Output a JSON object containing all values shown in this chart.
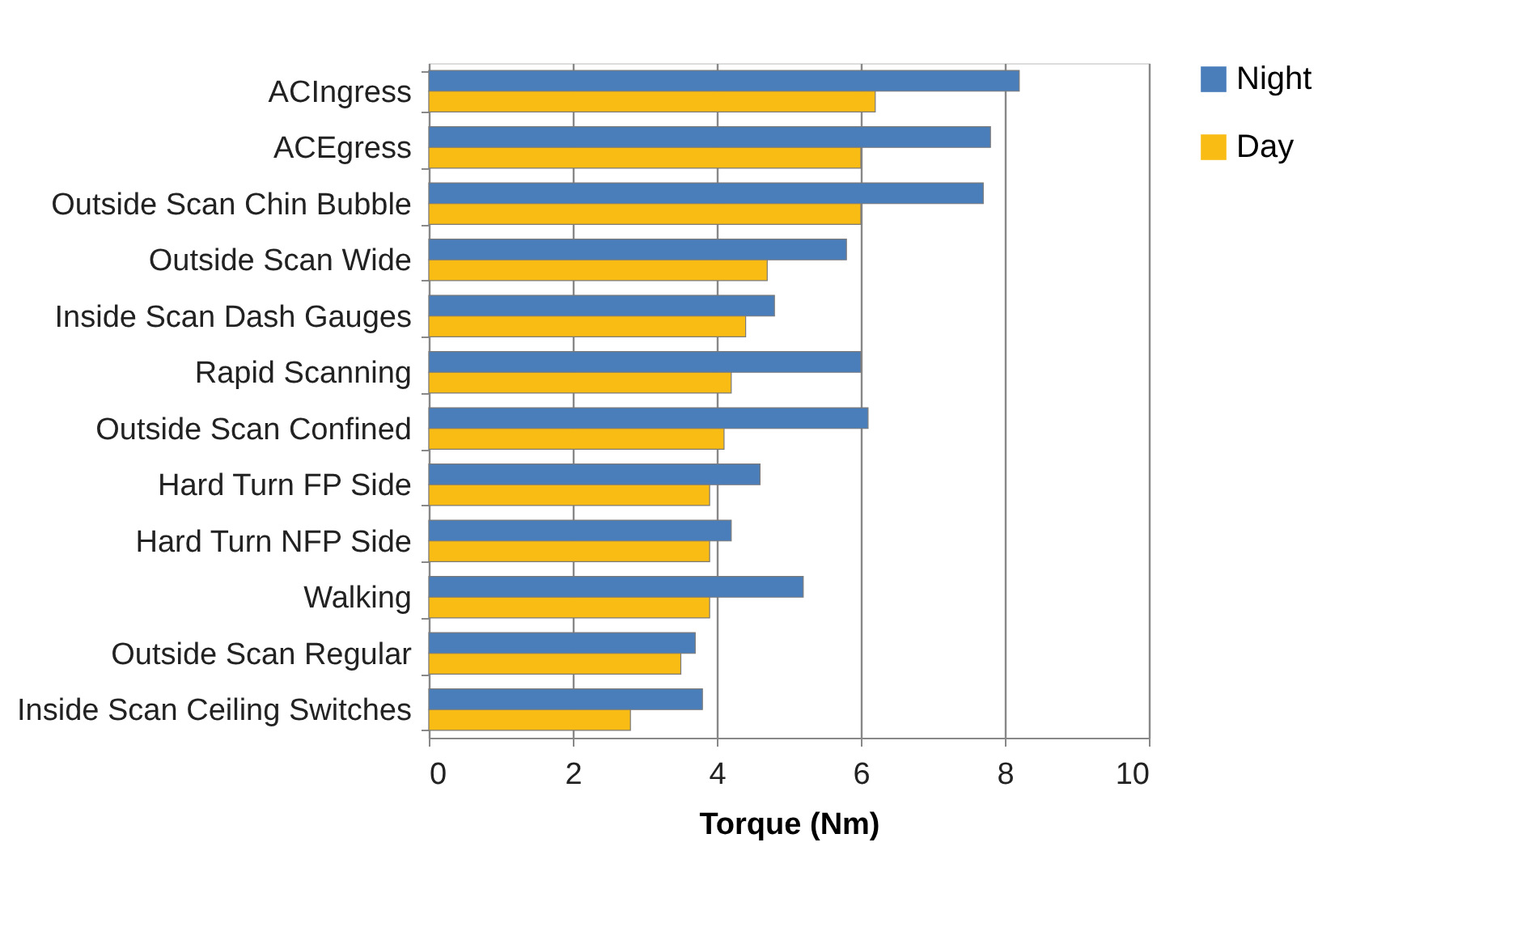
{
  "chart_data": {
    "type": "bar",
    "orientation": "horizontal",
    "xlabel": "Torque (Nm)",
    "categories": [
      "ACIngress",
      "ACEgress",
      "Outside Scan Chin Bubble",
      "Outside Scan Wide",
      "Inside Scan Dash Gauges",
      "Rapid Scanning",
      "Outside Scan Confined",
      "Hard Turn FP Side",
      "Hard Turn NFP Side",
      "Walking",
      "Outside Scan Regular",
      "Inside Scan Ceiling Switches"
    ],
    "series": [
      {
        "name": "Night",
        "color": "#4a7ebb",
        "values": [
          8.2,
          7.8,
          7.7,
          5.8,
          4.8,
          6.0,
          6.1,
          4.6,
          4.2,
          5.2,
          3.7,
          3.8
        ]
      },
      {
        "name": "Day",
        "color": "#f9bc15",
        "values": [
          6.2,
          6.0,
          6.0,
          4.7,
          4.4,
          4.2,
          4.1,
          3.9,
          3.9,
          3.9,
          3.5,
          2.8
        ]
      }
    ],
    "xlim": [
      0,
      10
    ],
    "xticks": [
      0,
      2,
      4,
      6,
      8,
      10
    ],
    "grid": "x",
    "legend": "right"
  }
}
